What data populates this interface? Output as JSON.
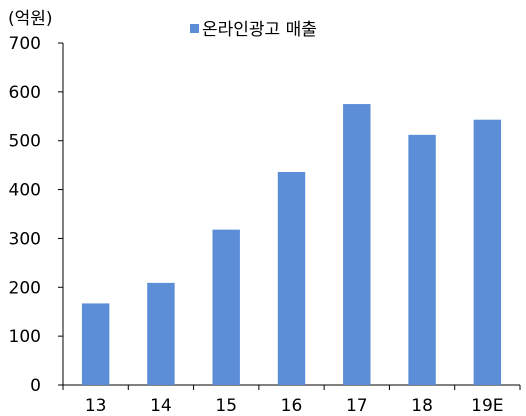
{
  "chart_data": {
    "type": "bar",
    "unit_label": "(억원)",
    "categories": [
      "13",
      "14",
      "15",
      "16",
      "17",
      "18",
      "19E"
    ],
    "series": [
      {
        "name": "온라인광고 매출",
        "values": [
          167,
          209,
          318,
          436,
          575,
          512,
          543
        ]
      }
    ],
    "ylim": [
      0,
      700
    ],
    "yticks": [
      "0",
      "100",
      "200",
      "300",
      "400",
      "500",
      "600",
      "700"
    ],
    "grid": false,
    "legend": "top-center",
    "bar_color": "#5B8ED6"
  }
}
